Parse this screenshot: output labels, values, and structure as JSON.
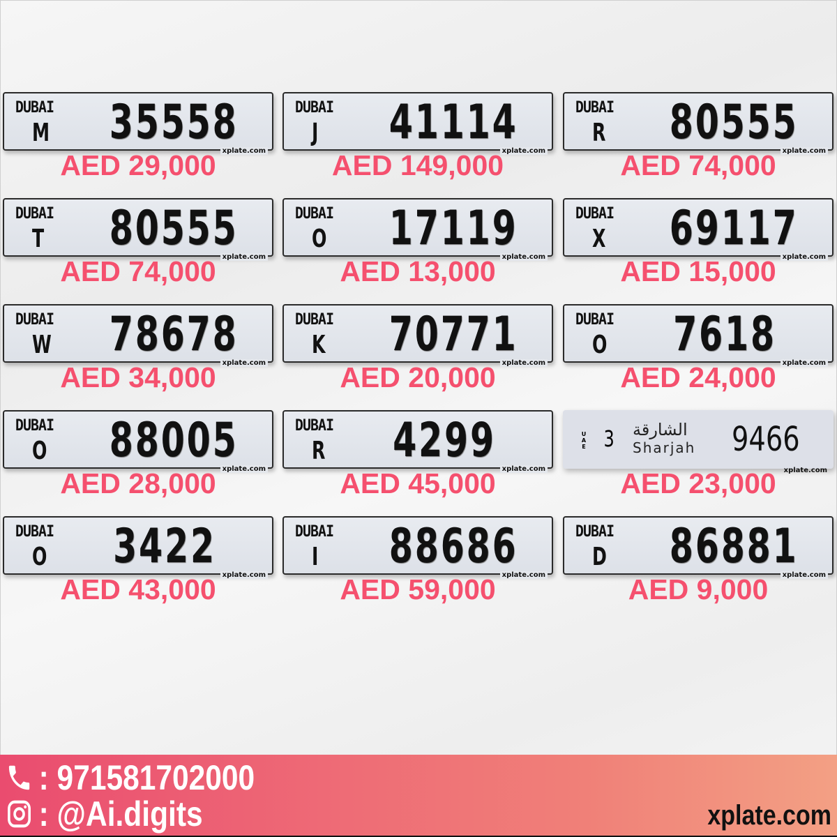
{
  "plates": [
    {
      "emirate": "DUBAI",
      "letter": "M",
      "number": "35558",
      "price": "AED 29,000",
      "watermark": "xplate.com"
    },
    {
      "emirate": "DUBAI",
      "letter": "J",
      "number": "41114",
      "price": "AED 149,000",
      "watermark": "xplate.com"
    },
    {
      "emirate": "DUBAI",
      "letter": "R",
      "number": "80555",
      "price": "AED 74,000",
      "watermark": "xplate.com"
    },
    {
      "emirate": "DUBAI",
      "letter": "T",
      "number": "80555",
      "price": "AED 74,000",
      "watermark": "xplate.com"
    },
    {
      "emirate": "DUBAI",
      "letter": "O",
      "number": "17119",
      "price": "AED 13,000",
      "watermark": "xplate.com"
    },
    {
      "emirate": "DUBAI",
      "letter": "X",
      "number": "69117",
      "price": "AED 15,000",
      "watermark": "xplate.com"
    },
    {
      "emirate": "DUBAI",
      "letter": "W",
      "number": "78678",
      "price": "AED 34,000",
      "watermark": "xplate.com"
    },
    {
      "emirate": "DUBAI",
      "letter": "K",
      "number": "70771",
      "price": "AED 20,000",
      "watermark": "xplate.com"
    },
    {
      "emirate": "DUBAI",
      "letter": "O",
      "number": "7618",
      "price": "AED 24,000",
      "watermark": "xplate.com"
    },
    {
      "emirate": "DUBAI",
      "letter": "O",
      "number": "88005",
      "price": "AED 28,000",
      "watermark": "xplate.com"
    },
    {
      "emirate": "DUBAI",
      "letter": "R",
      "number": "4299",
      "price": "AED 45,000",
      "watermark": "xplate.com"
    },
    {
      "emirate": "Sharjah",
      "emirate_ar": "الشارقة",
      "country": "UAE",
      "letter": "3",
      "number": "9466",
      "price": "AED 23,000",
      "watermark": "xplate.com"
    },
    {
      "emirate": "DUBAI",
      "letter": "O",
      "number": "3422",
      "price": "AED 43,000",
      "watermark": "xplate.com"
    },
    {
      "emirate": "DUBAI",
      "letter": "I",
      "number": "88686",
      "price": "AED 59,000",
      "watermark": "xplate.com"
    },
    {
      "emirate": "DUBAI",
      "letter": "D",
      "number": "86881",
      "price": "AED 9,000",
      "watermark": "xplate.com"
    }
  ],
  "footer": {
    "phone": ": 971581702000",
    "instagram": ": @Ai.digits",
    "site": "xplate.com",
    "phone_icon": "phone-icon",
    "instagram_icon": "instagram-icon"
  },
  "colors": {
    "price": "#f5506e",
    "footer_start": "#ea4c6f",
    "footer_end": "#f3a084"
  }
}
